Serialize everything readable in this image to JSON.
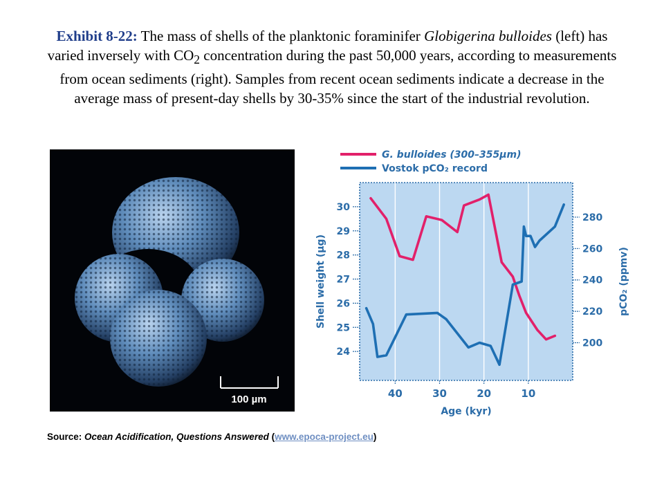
{
  "caption": {
    "label": "Exhibit 8-22:",
    "t1": " The mass of shells of the planktonic foraminifer ",
    "species": "Globigerina bulloides",
    "t2": " (left) has varied inversely with CO",
    "sub": "2",
    "t3": " concentration during the past 50,000 years, according to measurements from ocean sediments (right). Samples from recent ocean sediments indicate a decrease in the average mass of present-day shells by 30-35% since the start of the industrial revolution."
  },
  "micrograph": {
    "scale_label": "100 µm"
  },
  "chart_data": {
    "type": "line",
    "xlabel": "Age (kyr)",
    "ylabel_left": "Shell weight (µg)",
    "ylabel_right": "pCO₂ (ppmv)",
    "x_range": [
      0,
      48
    ],
    "x_reversed": true,
    "x_ticks": [
      40,
      30,
      20,
      10
    ],
    "x_tick_labels": [
      "40",
      "30",
      "20",
      "10"
    ],
    "y_left_range": [
      22.8,
      31.0
    ],
    "y_left_ticks": [
      30,
      29,
      28,
      27,
      26,
      25,
      24
    ],
    "y_left_tick_labels": [
      "30",
      "29",
      "28",
      "27",
      "26",
      "25",
      "24"
    ],
    "y_right_range": [
      176,
      302
    ],
    "y_right_ticks": [
      280,
      260,
      240,
      220,
      200
    ],
    "y_right_tick_labels": [
      "280",
      "260",
      "240",
      "220",
      "200"
    ],
    "grid": "vertical",
    "legend_position": "top-left",
    "colors": {
      "bulloides": "#e2206a",
      "vostok": "#1e6fb3",
      "plot_bg": "#bcd8f1",
      "axis": "#2b6ca8"
    },
    "series": [
      {
        "name": "G. bulloides (300–355µm)",
        "axis": "left",
        "x": [
          45.5,
          42,
          39,
          36,
          33,
          29.5,
          26,
          24.5,
          21,
          19,
          16,
          13.5,
          12,
          10.5,
          8,
          6,
          4
        ],
        "y": [
          30.35,
          29.5,
          27.95,
          27.8,
          29.6,
          29.45,
          28.95,
          30.05,
          30.3,
          30.5,
          27.7,
          27.1,
          26.3,
          25.6,
          24.9,
          24.5,
          24.65
        ]
      },
      {
        "name": "Vostok pCO₂ record",
        "axis": "right",
        "x": [
          46.5,
          45,
          44,
          42,
          37.5,
          30.5,
          28.5,
          23.5,
          21,
          18.5,
          16.5,
          13.5,
          11.5,
          11,
          10.5,
          9.5,
          8.5,
          7.5,
          4,
          2
        ],
        "y": [
          222,
          212,
          191,
          192,
          218,
          219,
          215,
          197,
          200,
          198,
          186,
          237,
          239,
          274,
          268,
          268,
          261,
          265,
          274,
          288
        ]
      }
    ]
  },
  "source": {
    "prefix": "Source: ",
    "title": "Ocean Acidification, Questions Answered",
    "open": " (",
    "link": "www.epoca-project.eu",
    "close": ")"
  }
}
